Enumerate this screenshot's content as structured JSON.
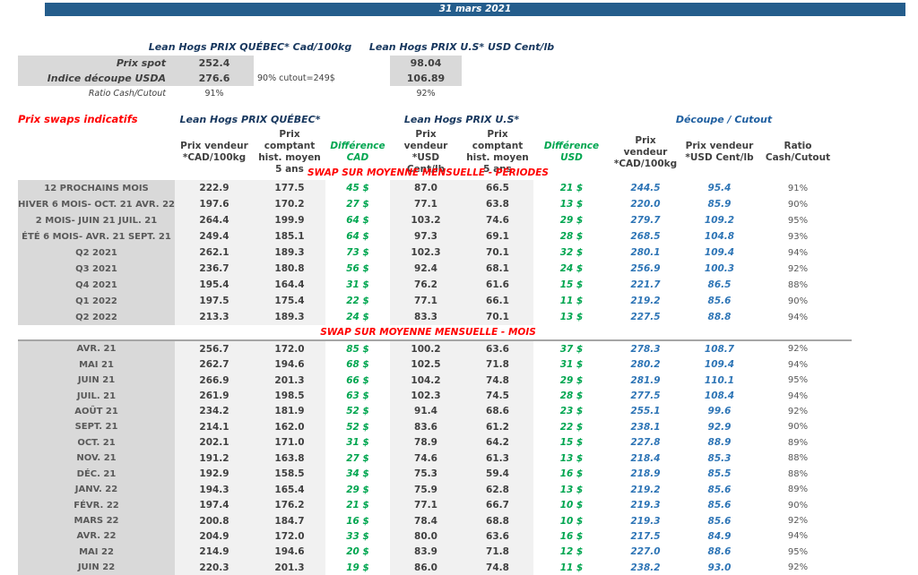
{
  "header": {
    "date": "31 mars 2021"
  },
  "spot": {
    "quebec_title": "Lean Hogs PRIX QUÉBEC* Cad/100kg",
    "us_title": "Lean Hogs PRIX U.S* USD Cent/lb",
    "rows": [
      {
        "label": "Prix spot",
        "cad": "252.4",
        "usd": "98.04"
      },
      {
        "label": "Indice découpe USDA",
        "cad": "276.6",
        "usd": "106.89",
        "note": "90% cutout=249$"
      },
      {
        "label": "Ratio Cash/Cutout",
        "cad": "91%",
        "usd": "92%"
      }
    ]
  },
  "swaps": {
    "title": "Prix swaps indicatifs",
    "group_quebec": "Lean Hogs PRIX QUÉBEC*",
    "group_us": "Lean Hogs PRIX U.S*",
    "group_cutout": "Découpe / Cutout",
    "column_headers": [
      "Prix vendeur *CAD/100kg",
      "Prix comptant hist. moyen 5 ans",
      "Différence CAD",
      "Prix vendeur *USD Cent/lb",
      "Prix comptant hist. moyen 5 ans",
      "Différence USD",
      "Prix vendeur *CAD/100kg",
      "Prix vendeur *USD Cent/lb",
      "Ratio Cash/Cutout"
    ],
    "sections": [
      {
        "heading": "SWAP SUR MOYENNE MENSUELLE - PÉRIODES",
        "css": "periodes",
        "rows": [
          [
            "12 PROCHAINS MOIS",
            "222.9",
            "177.5",
            "45 $",
            "87.0",
            "66.5",
            "21 $",
            "244.5",
            "95.4",
            "91%"
          ],
          [
            "HIVER 6 MOIS- OCT. 21 AVR. 22",
            "197.6",
            "170.2",
            "27 $",
            "77.1",
            "63.8",
            "13 $",
            "220.0",
            "85.9",
            "90%"
          ],
          [
            "2 MOIS- JUIN 21 JUIL. 21",
            "264.4",
            "199.9",
            "64 $",
            "103.2",
            "74.6",
            "29 $",
            "279.7",
            "109.2",
            "95%"
          ],
          [
            "ÉTÉ 6 MOIS- AVR. 21 SEPT. 21",
            "249.4",
            "185.1",
            "64 $",
            "97.3",
            "69.1",
            "28 $",
            "268.5",
            "104.8",
            "93%"
          ],
          [
            "Q2 2021",
            "262.1",
            "189.3",
            "73 $",
            "102.3",
            "70.1",
            "32 $",
            "280.1",
            "109.4",
            "94%"
          ],
          [
            "Q3 2021",
            "236.7",
            "180.8",
            "56 $",
            "92.4",
            "68.1",
            "24 $",
            "256.9",
            "100.3",
            "92%"
          ],
          [
            "Q4 2021",
            "195.4",
            "164.4",
            "31 $",
            "76.2",
            "61.6",
            "15 $",
            "221.7",
            "86.5",
            "88%"
          ],
          [
            "Q1 2022",
            "197.5",
            "175.4",
            "22 $",
            "77.1",
            "66.1",
            "11 $",
            "219.2",
            "85.6",
            "90%"
          ],
          [
            "Q2 2022",
            "213.3",
            "189.3",
            "24 $",
            "83.3",
            "70.1",
            "13 $",
            "227.5",
            "88.8",
            "94%"
          ]
        ]
      },
      {
        "heading": "SWAP SUR MOYENNE MENSUELLE - MOIS",
        "css": "mois",
        "separator": true,
        "rows": [
          [
            "AVR. 21",
            "256.7",
            "172.0",
            "85 $",
            "100.2",
            "63.6",
            "37 $",
            "278.3",
            "108.7",
            "92%"
          ],
          [
            "MAI 21",
            "262.7",
            "194.6",
            "68 $",
            "102.5",
            "71.8",
            "31 $",
            "280.2",
            "109.4",
            "94%"
          ],
          [
            "JUIN 21",
            "266.9",
            "201.3",
            "66 $",
            "104.2",
            "74.8",
            "29 $",
            "281.9",
            "110.1",
            "95%"
          ],
          [
            "JUIL. 21",
            "261.9",
            "198.5",
            "63 $",
            "102.3",
            "74.5",
            "28 $",
            "277.5",
            "108.4",
            "94%"
          ],
          [
            "AOÛT 21",
            "234.2",
            "181.9",
            "52 $",
            "91.4",
            "68.6",
            "23 $",
            "255.1",
            "99.6",
            "92%"
          ],
          [
            "SEPT. 21",
            "214.1",
            "162.0",
            "52 $",
            "83.6",
            "61.2",
            "22 $",
            "238.1",
            "92.9",
            "90%"
          ],
          [
            "OCT. 21",
            "202.1",
            "171.0",
            "31 $",
            "78.9",
            "64.2",
            "15 $",
            "227.8",
            "88.9",
            "89%"
          ],
          [
            "NOV. 21",
            "191.2",
            "163.8",
            "27 $",
            "74.6",
            "61.3",
            "13 $",
            "218.4",
            "85.3",
            "88%"
          ],
          [
            "DÉC. 21",
            "192.9",
            "158.5",
            "34 $",
            "75.3",
            "59.4",
            "16 $",
            "218.9",
            "85.5",
            "88%"
          ],
          [
            "JANV. 22",
            "194.3",
            "165.4",
            "29 $",
            "75.9",
            "62.8",
            "13 $",
            "219.2",
            "85.6",
            "89%"
          ],
          [
            "FÉVR. 22",
            "197.4",
            "176.2",
            "21 $",
            "77.1",
            "66.7",
            "10 $",
            "219.3",
            "85.6",
            "90%"
          ],
          [
            "MARS 22",
            "200.8",
            "184.7",
            "16 $",
            "78.4",
            "68.8",
            "10 $",
            "219.3",
            "85.6",
            "92%"
          ],
          [
            "AVR. 22",
            "204.9",
            "172.0",
            "33 $",
            "80.0",
            "63.6",
            "16 $",
            "217.5",
            "84.9",
            "94%"
          ],
          [
            "MAI 22",
            "214.9",
            "194.6",
            "20 $",
            "83.9",
            "71.8",
            "12 $",
            "227.0",
            "88.6",
            "95%"
          ],
          [
            "JUIN 22",
            "220.3",
            "201.3",
            "19 $",
            "86.0",
            "74.8",
            "11 $",
            "238.2",
            "93.0",
            "92%"
          ]
        ]
      }
    ]
  },
  "colors": {
    "bar_blue": "#245d8c",
    "navy": "#17375e",
    "red": "#ff0000",
    "green": "#00a650",
    "value_blue": "#2e75b6",
    "label_gray_bg": "#d9d9d9",
    "col_gray_bg": "#f1f1f1"
  }
}
